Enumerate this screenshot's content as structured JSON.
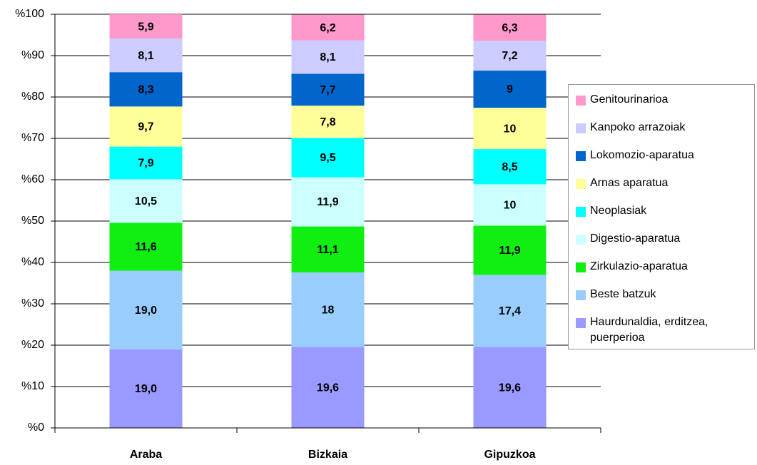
{
  "chart_data": {
    "type": "stacked_bar",
    "categories": [
      "Araba",
      "Bizkaia",
      "Gipuzkoa"
    ],
    "ylim": [
      0,
      100
    ],
    "yticks": [
      {
        "value": 0,
        "label": "%0"
      },
      {
        "value": 10,
        "label": "%10"
      },
      {
        "value": 20,
        "label": "%20"
      },
      {
        "value": 30,
        "label": "%30"
      },
      {
        "value": 40,
        "label": "%40"
      },
      {
        "value": 50,
        "label": "%50"
      },
      {
        "value": 60,
        "label": "%60"
      },
      {
        "value": 70,
        "label": "%70"
      },
      {
        "value": 80,
        "label": "%80"
      },
      {
        "value": 90,
        "label": "%90"
      },
      {
        "value": 100,
        "label": "%100"
      }
    ],
    "grid": true,
    "legend": "right",
    "series": [
      {
        "name": "Haurdunaldia, erditzea, puerperioa",
        "color": "#9999ff",
        "values": [
          19.0,
          19.6,
          19.6
        ],
        "value_labels": [
          "19,0",
          "19,6",
          "19,6"
        ]
      },
      {
        "name": "Beste batzuk",
        "color": "#99ccff",
        "values": [
          19.0,
          18,
          17.4
        ],
        "value_labels": [
          "19,0",
          "18",
          "17,4"
        ]
      },
      {
        "name": "Zirkulazio-aparatua",
        "color": "#11ee11",
        "values": [
          11.6,
          11.1,
          11.9
        ],
        "value_labels": [
          "11,6",
          "11,1",
          "11,9"
        ]
      },
      {
        "name": "Digestio-aparatua",
        "color": "#ccffff",
        "values": [
          10.5,
          11.9,
          10
        ],
        "value_labels": [
          "10,5",
          "11,9",
          "10"
        ]
      },
      {
        "name": "Neoplasiak",
        "color": "#00ffff",
        "values": [
          7.9,
          9.5,
          8.5
        ],
        "value_labels": [
          "7,9",
          "9,5",
          "8,5"
        ]
      },
      {
        "name": "Arnas aparatua",
        "color": "#ffff99",
        "values": [
          9.7,
          7.8,
          10
        ],
        "value_labels": [
          "9,7",
          "7,8",
          "10"
        ]
      },
      {
        "name": "Lokomozio-aparatua",
        "color": "#0066cc",
        "values": [
          8.3,
          7.7,
          9
        ],
        "value_labels": [
          "8,3",
          "7,7",
          "9"
        ]
      },
      {
        "name": "Kanpoko arrazoiak",
        "color": "#ccccff",
        "values": [
          8.1,
          8.1,
          7.2
        ],
        "value_labels": [
          "8,1",
          "8,1",
          "7,2"
        ]
      },
      {
        "name": "Genitourinarioa",
        "color": "#ff99cc",
        "values": [
          5.9,
          6.2,
          6.3
        ],
        "value_labels": [
          "5,9",
          "6,2",
          "6,3"
        ]
      }
    ]
  }
}
